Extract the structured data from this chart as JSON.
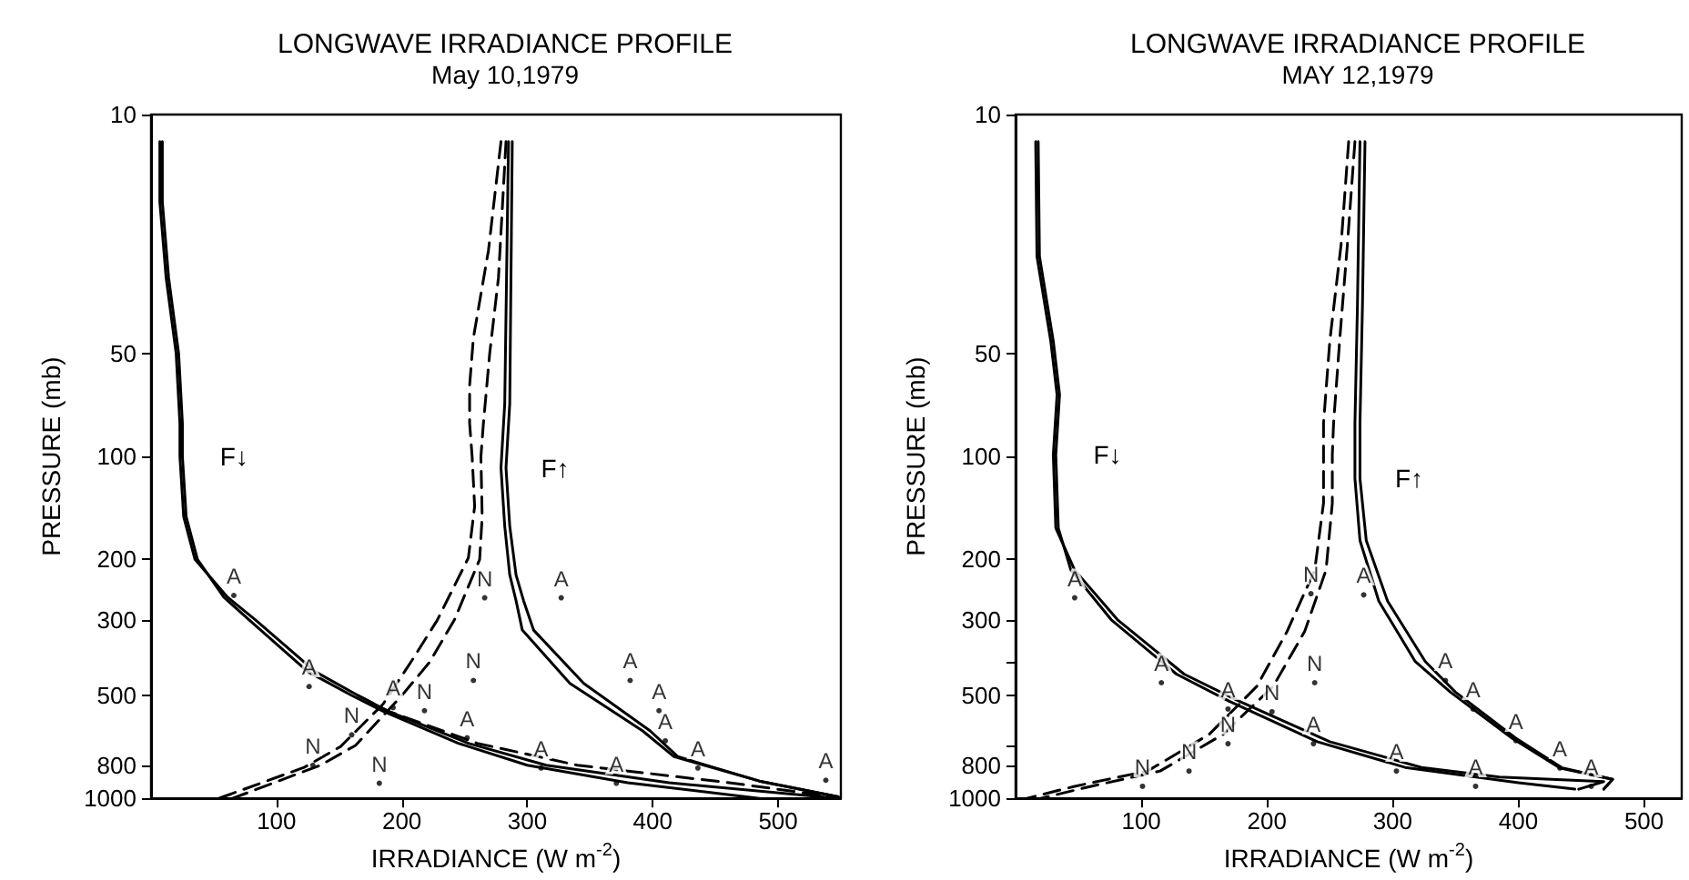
{
  "chart_data": [
    {
      "type": "line",
      "title": "LONGWAVE IRRADIANCE PROFILE",
      "subtitle": "May 10,1979",
      "xlabel": "IRRADIANCE (W m$^{-2}$)",
      "ylabel": "PRESSURE (mb)",
      "log": "y",
      "xlim": [
        0,
        550
      ],
      "xticks": [
        100,
        200,
        300,
        400,
        500
      ],
      "ylim": [
        1000,
        10
      ],
      "yticks": [
        10,
        50,
        100,
        200,
        300,
        500,
        800,
        1000
      ],
      "series": [
        {
          "name": "F↓",
          "color": "#000000",
          "line_style": "solid",
          "x": [
            7,
            7,
            12,
            20,
            23,
            23,
            26,
            35,
            61,
            83,
            131,
            165,
            189,
            253,
            315,
            413,
            548
          ],
          "values": [
            12,
            18,
            30,
            50,
            80,
            100,
            150,
            200,
            258,
            300,
            426,
            500,
            556,
            690,
            800,
            900,
            1000
          ]
        },
        {
          "color": "#000000",
          "line_style": "solid",
          "x": [
            9,
            9,
            14,
            22,
            25,
            25,
            28,
            37,
            58,
            78,
            125,
            160,
            185,
            245,
            300,
            380,
            485
          ],
          "values": [
            12,
            18,
            30,
            50,
            80,
            100,
            150,
            200,
            258,
            300,
            426,
            500,
            556,
            690,
            800,
            900,
            1000
          ]
        },
        {
          "color": "#000000",
          "line_style": "dashed",
          "x": [
            165,
            189,
            260,
            340,
            461,
            545
          ],
          "values": [
            500,
            556,
            690,
            800,
            900,
            990
          ]
        },
        {
          "name": "F↑",
          "color": "#000000",
          "line_style": "solid",
          "x": [
            285,
            282,
            279,
            282,
            286,
            291,
            296,
            334,
            392,
            417,
            485,
            548
          ],
          "values": [
            12,
            70,
            108,
            160,
            222,
            264,
            322,
            461,
            635,
            755,
            890,
            990
          ]
        },
        {
          "color": "#000000",
          "line_style": "solid",
          "x": [
            288,
            286,
            283,
            286,
            291,
            297,
            305,
            345,
            398,
            420,
            485,
            548
          ],
          "values": [
            12,
            70,
            108,
            160,
            222,
            264,
            322,
            461,
            635,
            755,
            890,
            990
          ]
        },
        {
          "color": "#000000",
          "line_style": "dashed",
          "x": [
            279,
            269,
            257,
            254,
            254,
            256,
            258,
            253,
            228,
            209,
            185,
            151,
            122,
            54
          ],
          "values": [
            12,
            25,
            45,
            62,
            80,
            100,
            140,
            198,
            302,
            390,
            530,
            706,
            812,
            1000
          ]
        },
        {
          "color": "#000000",
          "line_style": "dashed",
          "x": [
            283,
            277,
            270,
            265,
            263,
            264,
            262,
            242,
            222,
            200,
            163,
            135,
            65
          ],
          "values": [
            12,
            30,
            50,
            80,
            100,
            150,
            200,
            300,
            400,
            500,
            700,
            800,
            1000
          ]
        },
        {
          "type": "scatter",
          "name": "A",
          "color": "#000000",
          "x": [
            66,
            126,
            193,
            252,
            311,
            371,
            538,
            436,
            410,
            405,
            382,
            327
          ],
          "values": [
            255,
            471,
            543,
            665,
            815,
            903,
            885,
            815,
            679,
            554,
            452,
            259
          ]
        },
        {
          "type": "scatter",
          "name": "N",
          "color": "#000000",
          "x": [
            266,
            257,
            218,
            160,
            129,
            182
          ],
          "values": [
            259,
            452,
            554,
            652,
            800,
            903
          ]
        }
      ]
    },
    {
      "type": "line",
      "title": "LONGWAVE IRRADIANCE PROFILE",
      "subtitle": "MAY 12,1979",
      "xlabel": "IRRADIANCE (W m$^{-2}$)",
      "ylabel": "PRESSURE (mb)",
      "log": "y",
      "xlim": [
        0,
        530
      ],
      "xticks": [
        100,
        200,
        300,
        400,
        500
      ],
      "ylim": [
        1000,
        10
      ],
      "yticks": [
        10,
        50,
        100,
        200,
        300,
        {
          "value": 400,
          "label": null
        },
        500,
        {
          "value": 700,
          "label": null
        },
        800,
        1000
      ],
      "series": [
        {
          "name": "F↓",
          "color": "#000000",
          "line_style": "solid",
          "x": [
            16,
            17,
            28,
            33,
            30,
            32,
            47,
            81,
            134,
            178,
            250,
            323,
            385,
            468,
            448
          ],
          "values": [
            12,
            26,
            46,
            66,
            99,
            162,
            215,
            300,
            433,
            520,
            683,
            812,
            866,
            893,
            940
          ]
        },
        {
          "color": "#000000",
          "line_style": "solid",
          "x": [
            18,
            19,
            30,
            35,
            32,
            34,
            44,
            76,
            128,
            170,
            240,
            310,
            400,
            445
          ],
          "values": [
            12,
            26,
            46,
            66,
            99,
            162,
            215,
            300,
            433,
            520,
            683,
            812,
            900,
            940
          ]
        },
        {
          "name": "F↑",
          "color": "#000000",
          "line_style": "solid",
          "x": [
            274,
            272,
            270,
            270,
            274,
            289,
            318,
            346,
            395,
            433,
            475,
            468
          ],
          "values": [
            12,
            36,
            80,
            116,
            176,
            265,
            398,
            489,
            667,
            815,
            880,
            940
          ]
        },
        {
          "color": "#000000",
          "line_style": "solid",
          "x": [
            278,
            276,
            274,
            274,
            279,
            296,
            326,
            350,
            398,
            435,
            475,
            468
          ],
          "values": [
            12,
            36,
            80,
            116,
            176,
            265,
            398,
            489,
            667,
            815,
            880,
            940
          ]
        },
        {
          "color": "#000000",
          "line_style": "dashed",
          "x": [
            265,
            259,
            250,
            245,
            245,
            245,
            238,
            216,
            192,
            154,
            105,
            47,
            9
          ],
          "values": [
            12,
            24,
            46,
            80,
            99,
            137,
            215,
            325,
            470,
            650,
            832,
            922,
            1000
          ]
        },
        {
          "color": "#000000",
          "line_style": "dashed",
          "x": [
            270,
            264,
            258,
            253,
            252,
            252,
            247,
            230,
            205,
            165,
            115,
            60,
            20
          ],
          "values": [
            12,
            24,
            45,
            80,
            99,
            137,
            215,
            325,
            470,
            650,
            832,
            922,
            1000
          ]
        },
        {
          "type": "scatter",
          "name": "A",
          "color": "#000000",
          "x": [
            47,
            116,
            169,
            237,
            303,
            366,
            458,
            433,
            398,
            364,
            342,
            277
          ],
          "values": [
            259,
            459,
            548,
            692,
            832,
            922,
            922,
            815,
            678,
            548,
            452,
            254
          ]
        },
        {
          "type": "scatter",
          "name": "N",
          "color": "#000000",
          "x": [
            235,
            238,
            204,
            169,
            138,
            101
          ],
          "values": [
            252,
            459,
            558,
            692,
            832,
            922
          ]
        }
      ]
    }
  ]
}
